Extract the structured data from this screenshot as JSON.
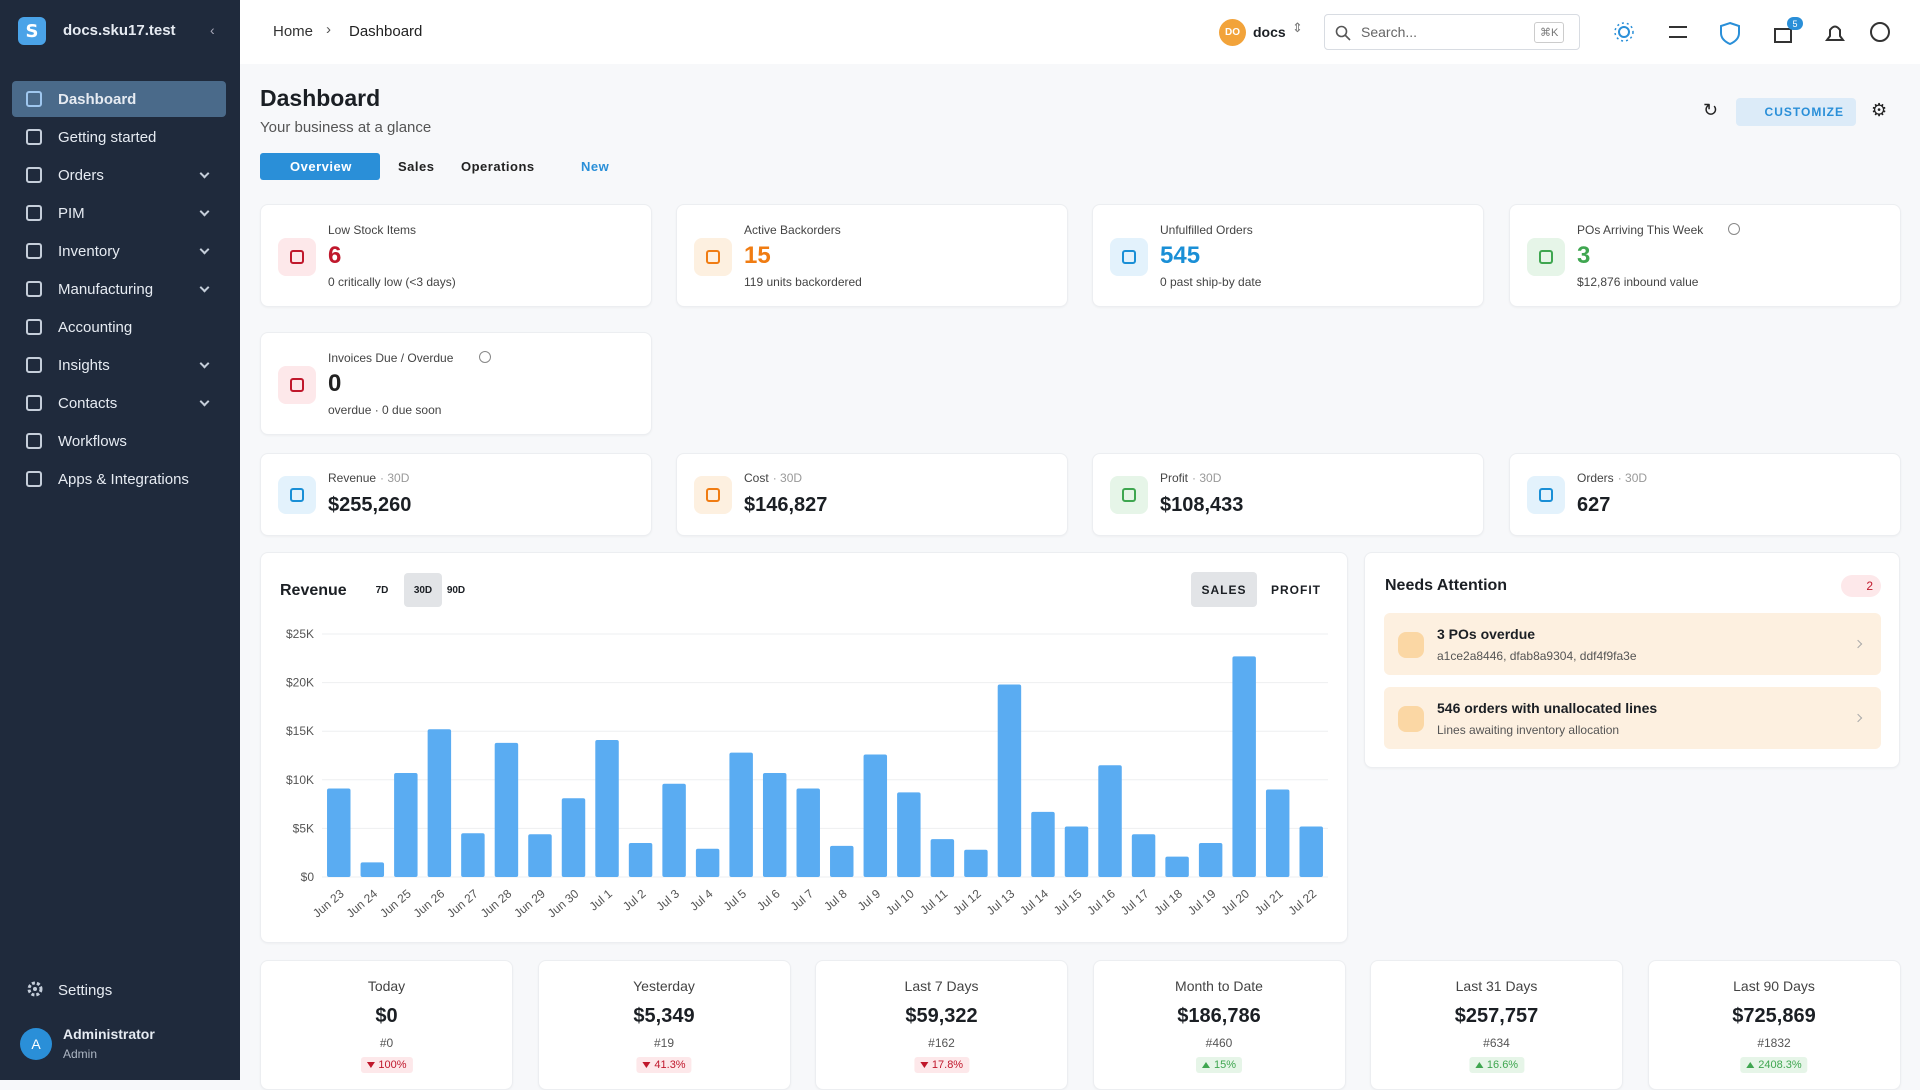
{
  "brand": {
    "name": "docs.sku17.test"
  },
  "sidebar": {
    "items": [
      {
        "label": "Dashboard",
        "active": true,
        "expandable": false
      },
      {
        "label": "Getting started",
        "active": false,
        "expandable": false
      },
      {
        "label": "Orders",
        "active": false,
        "expandable": true
      },
      {
        "label": "PIM",
        "active": false,
        "expandable": true
      },
      {
        "label": "Inventory",
        "active": false,
        "expandable": true
      },
      {
        "label": "Manufacturing",
        "active": false,
        "expandable": true
      },
      {
        "label": "Accounting",
        "active": false,
        "expandable": false
      },
      {
        "label": "Insights",
        "active": false,
        "expandable": true
      },
      {
        "label": "Contacts",
        "active": false,
        "expandable": true
      },
      {
        "label": "Workflows",
        "active": false,
        "expandable": false
      },
      {
        "label": "Apps & Integrations",
        "active": false,
        "expandable": false
      }
    ],
    "settings": "Settings",
    "user": {
      "initial": "A",
      "name": "Administrator",
      "role": "Admin"
    }
  },
  "header": {
    "breadcrumbs": [
      "Home",
      "Dashboard"
    ],
    "org_badge": "DO",
    "org": "docs",
    "search_placeholder": "Search...",
    "shortcut": "⌘K",
    "gift_badge": 5
  },
  "page": {
    "title": "Dashboard",
    "subtitle": "Your business at a glance",
    "tabs": [
      "Overview",
      "Sales",
      "Operations",
      "New"
    ],
    "customize": "CUSTOMIZE"
  },
  "kpis": [
    {
      "label": "Low Stock Items",
      "value": 6,
      "note": "0 critically low (<3 days)",
      "color": "#c0182c",
      "bg": "#fde8ea"
    },
    {
      "label": "Active Backorders",
      "value": 15,
      "note": "119 units backordered",
      "color": "#f07c12",
      "bg": "#fdf0e0"
    },
    {
      "label": "Unfulfilled Orders",
      "value": 545,
      "note": "0 past ship-by date",
      "color": "#1a8fd6",
      "bg": "#e3f2fc"
    },
    {
      "label": "POs Arriving This Week",
      "value": 3,
      "note": "$12,876 inbound value",
      "color": "#3fa650",
      "bg": "#e6f5e8",
      "info": true
    },
    {
      "label": "Invoices Due / Overdue",
      "value": 0,
      "note": "overdue · 0 due soon",
      "color": "#222222",
      "bg": "#fde8ea",
      "info": true
    }
  ],
  "metrics": [
    {
      "label": "Revenue",
      "period": "· 30D",
      "value": "$255,260",
      "color": "#1a8fd6",
      "bg": "#e3f2fc"
    },
    {
      "label": "Cost",
      "period": "· 30D",
      "value": "$146,827",
      "color": "#f07c12",
      "bg": "#fdf0e0"
    },
    {
      "label": "Profit",
      "period": "· 30D",
      "value": "$108,433",
      "color": "#3fa650",
      "bg": "#e6f5e8"
    },
    {
      "label": "Orders",
      "period": "· 30D",
      "value": "627",
      "color": "#1a8fd6",
      "bg": "#e3f2fc"
    }
  ],
  "revenue_panel": {
    "title": "Revenue",
    "ranges": [
      "7D",
      "30D",
      "90D"
    ],
    "active_range": 1,
    "modes": [
      "SALES",
      "PROFIT"
    ],
    "active_mode": 0
  },
  "chart_data": {
    "type": "bar",
    "categories": [
      "Jun 23",
      "Jun 24",
      "Jun 25",
      "Jun 26",
      "Jun 27",
      "Jun 28",
      "Jun 29",
      "Jun 30",
      "Jul 1",
      "Jul 2",
      "Jul 3",
      "Jul 4",
      "Jul 5",
      "Jul 6",
      "Jul 7",
      "Jul 8",
      "Jul 9",
      "Jul 10",
      "Jul 11",
      "Jul 12",
      "Jul 13",
      "Jul 14",
      "Jul 15",
      "Jul 16",
      "Jul 17",
      "Jul 18",
      "Jul 19",
      "Jul 20",
      "Jul 21",
      "Jul 22"
    ],
    "values": [
      9100,
      1500,
      10700,
      15200,
      4500,
      13800,
      4400,
      8100,
      14100,
      3500,
      9600,
      2900,
      12800,
      10700,
      9100,
      3200,
      12600,
      8700,
      3900,
      2800,
      19800,
      6700,
      5200,
      11500,
      4400,
      2100,
      3500,
      22700,
      9000,
      5200
    ],
    "color": "#5aacf2",
    "ylim": [
      0,
      25000
    ],
    "yticks": [
      {
        "value": 0,
        "label": "$0"
      },
      {
        "value": 5000,
        "label": "$5K"
      },
      {
        "value": 10000,
        "label": "$10K"
      },
      {
        "value": 15000,
        "label": "$15K"
      },
      {
        "value": 20000,
        "label": "$20K"
      },
      {
        "value": 25000,
        "label": "$25K"
      }
    ],
    "grid": true
  },
  "attention": {
    "title": "Needs Attention",
    "count": 2,
    "items": [
      {
        "title": "3 POs overdue",
        "subtitle": "a1ce2a8446, dfab8a9304, ddf4f9fa3e"
      },
      {
        "title": "546 orders with unallocated lines",
        "subtitle": "Lines awaiting inventory allocation"
      }
    ]
  },
  "periods": [
    {
      "label": "Today",
      "value": "$0",
      "count": "#0",
      "change": "100%",
      "direction": "down"
    },
    {
      "label": "Yesterday",
      "value": "$5,349",
      "count": "#19",
      "change": "41.3%",
      "direction": "down"
    },
    {
      "label": "Last 7 Days",
      "value": "$59,322",
      "count": "#162",
      "change": "17.8%",
      "direction": "down"
    },
    {
      "label": "Month to Date",
      "value": "$186,786",
      "count": "#460",
      "change": "15%",
      "direction": "up"
    },
    {
      "label": "Last 31 Days",
      "value": "$257,757",
      "count": "#634",
      "change": "16.6%",
      "direction": "up"
    },
    {
      "label": "Last 90 Days",
      "value": "$725,869",
      "count": "#1832",
      "change": "2408.3%",
      "direction": "up"
    }
  ]
}
